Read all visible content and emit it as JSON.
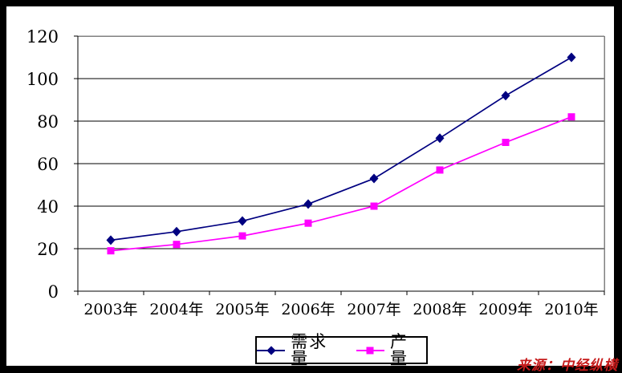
{
  "chart_data": {
    "type": "line",
    "title": "",
    "xlabel": "",
    "ylabel": "",
    "categories": [
      "2003年",
      "2004年",
      "2005年",
      "2006年",
      "2007年",
      "2008年",
      "2009年",
      "2010年"
    ],
    "series": [
      {
        "name": "需求量",
        "marker": "diamond",
        "color": "#000080",
        "values": [
          24,
          28,
          33,
          41,
          53,
          72,
          92,
          110
        ]
      },
      {
        "name": "产量",
        "marker": "square",
        "color": "#ff00ff",
        "values": [
          19,
          22,
          26,
          32,
          40,
          57,
          70,
          82
        ]
      }
    ],
    "ylim": [
      0,
      120
    ],
    "yticks": [
      0,
      20,
      40,
      60,
      80,
      100,
      120
    ],
    "grid": "horizontal",
    "gridline_color": "#000000",
    "plot_border_color": "#808080",
    "legend_position": "bottom-center"
  },
  "source_note": {
    "text": "来源：中经纵横",
    "color": "#c61b1b"
  }
}
